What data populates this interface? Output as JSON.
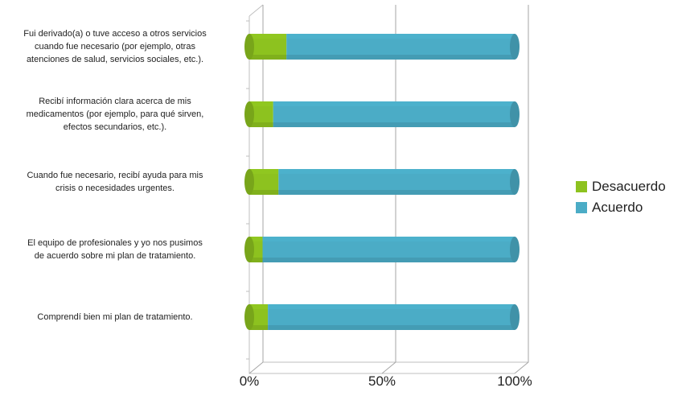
{
  "chart_data": {
    "type": "bar",
    "orientation": "horizontal",
    "stacked": true,
    "percent": true,
    "categories": [
      "Fui derivado(a) o tuve acceso a otros servicios\ncuando fue necesario (por ejemplo, otras\natenciones de salud, servicios sociales, etc.).",
      "Recibí información clara acerca de mis\nmedicamentos (por ejemplo, para qué sirven,\nefectos secundarios, etc.).",
      "Cuando fue necesario, recibí ayuda para mis\ncrisis o necesidades urgentes.",
      "El equipo de profesionales y yo nos pusimos\nde acuerdo sobre mi plan de tratamiento.",
      "Comprendí bien mi plan de tratamiento."
    ],
    "series": [
      {
        "name": "Desacuerdo",
        "color": "#8DC21F",
        "values": [
          14,
          9,
          11,
          5,
          7
        ]
      },
      {
        "name": "Acuerdo",
        "color": "#4BACC6",
        "values": [
          86,
          91,
          89,
          95,
          93
        ]
      }
    ],
    "xlim": [
      0,
      100
    ],
    "x_ticks": [
      "0%",
      "50%",
      "100%"
    ],
    "gridlines": true,
    "legend_position": "right"
  }
}
